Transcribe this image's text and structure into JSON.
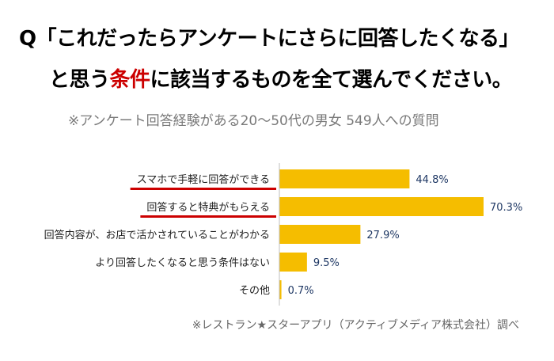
{
  "question": {
    "line1": "Q「これだったらアンケートにさらに回答したくなる」",
    "line2_before": "と思う",
    "line2_accent": "条件",
    "line2_after": "に該当するものを全て選んでください。"
  },
  "subtitle": "※アンケート回答経験がある20～50代の男女 549人への質問",
  "source": "※レストラン★スターアプリ（アクティブメディア株式会社）調べ",
  "colors": {
    "bar": "#f5bd00",
    "axis": "#bfbfbf",
    "underline": "#cc0000",
    "label_text": "#222222",
    "value_text": "#1f3864"
  },
  "chart_data": {
    "type": "bar",
    "orientation": "horizontal",
    "title": "",
    "xlabel": "",
    "ylabel": "",
    "xlim": [
      0,
      70.3
    ],
    "grid": false,
    "legend": "none",
    "categories": [
      "スマホで手軽に回答ができる",
      "回答すると特典がもらえる",
      "回答内容が、お店で活かされていることがわかる",
      "より回答したくなると思う条件はない",
      "その他"
    ],
    "values": [
      44.8,
      70.3,
      27.9,
      9.5,
      0.7
    ],
    "value_labels": [
      "44.8%",
      "70.3%",
      "27.9%",
      "9.5%",
      "0.7%"
    ],
    "highlighted": [
      true,
      true,
      false,
      false,
      false
    ]
  }
}
